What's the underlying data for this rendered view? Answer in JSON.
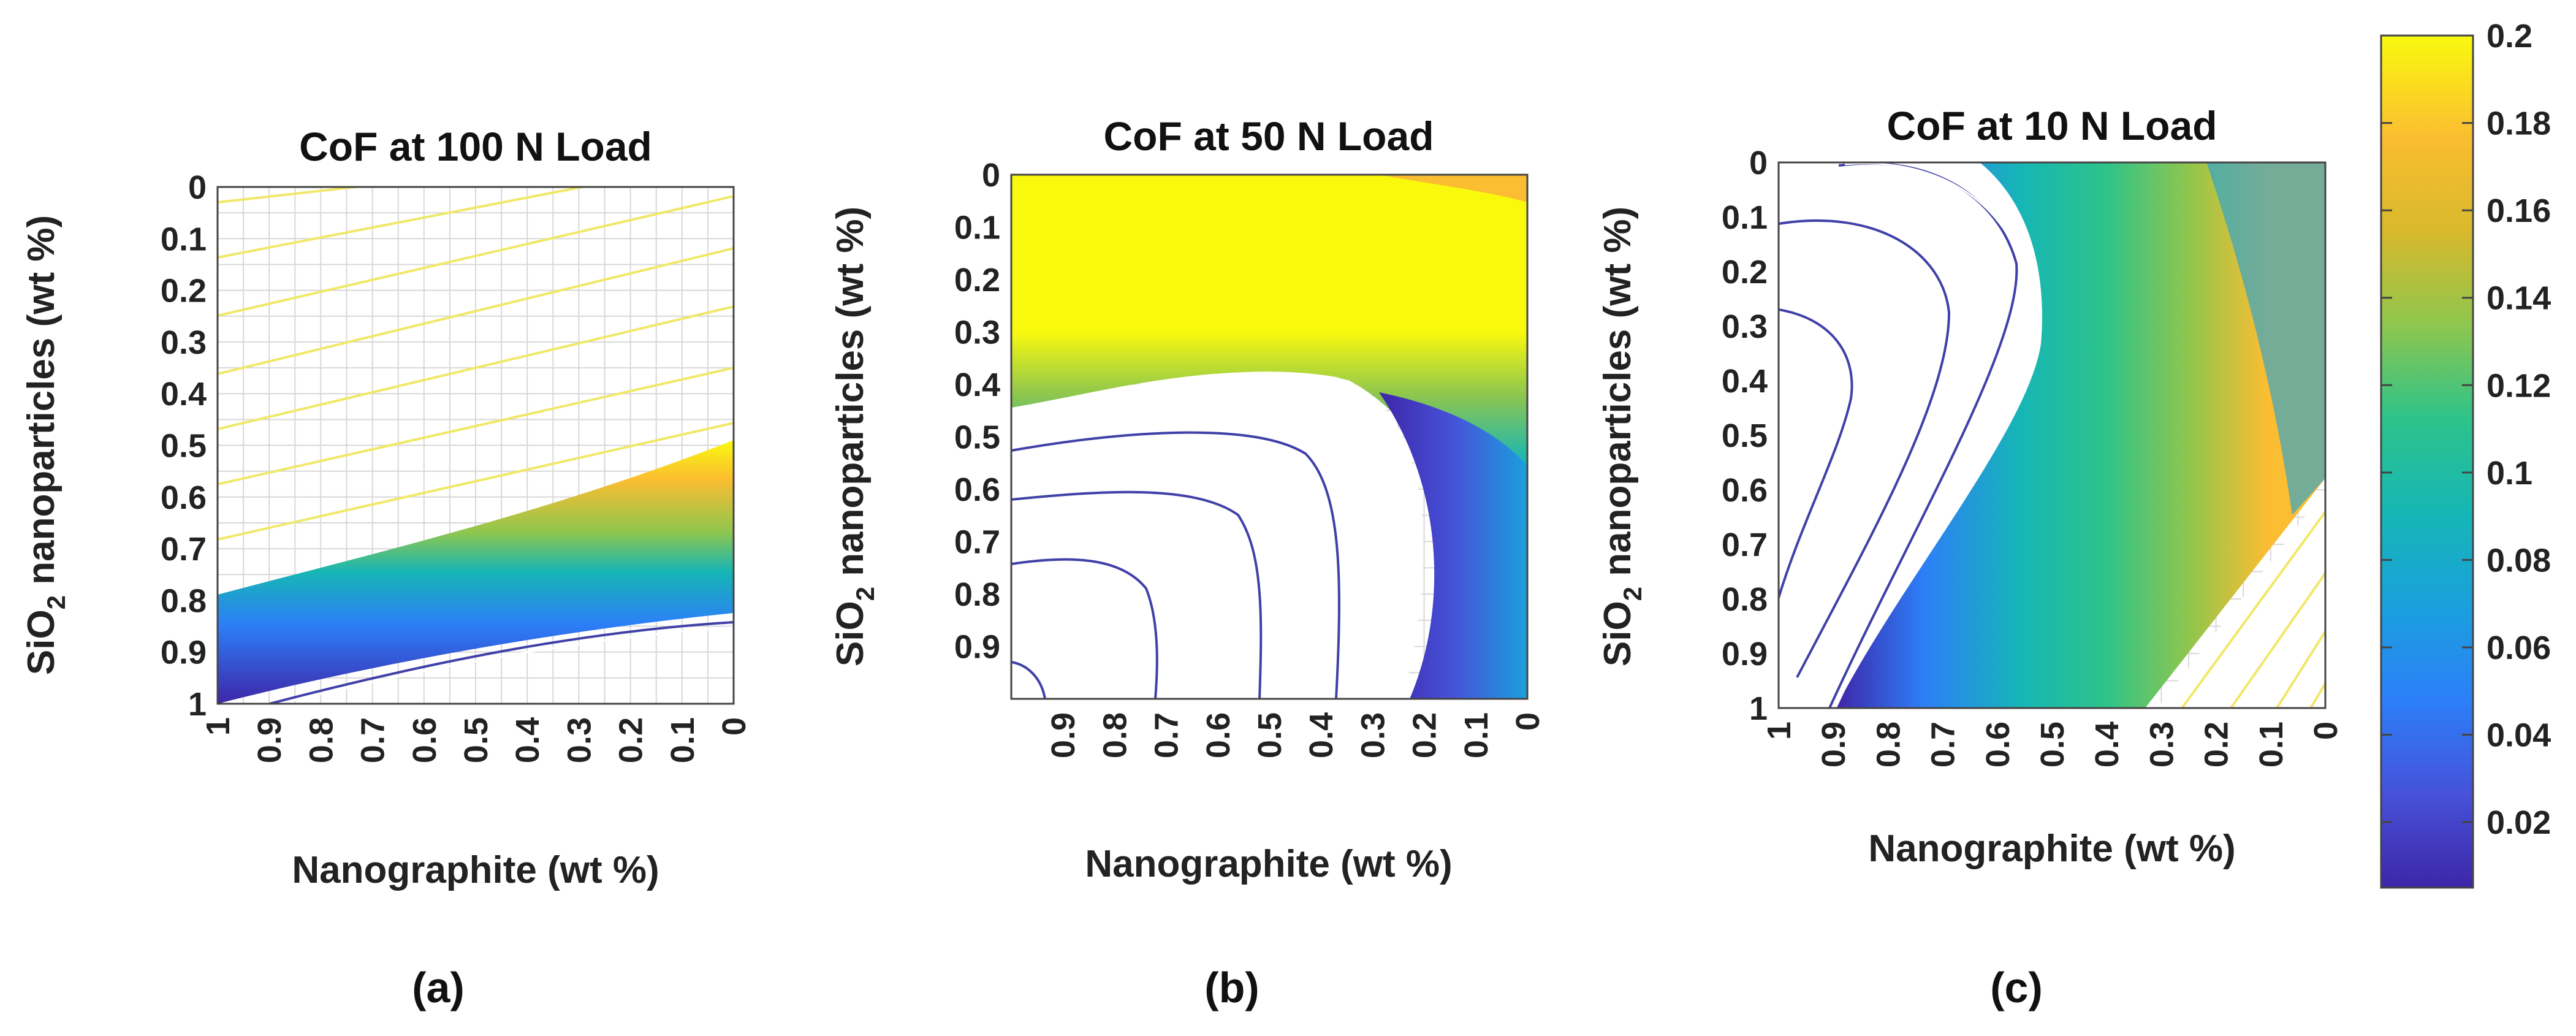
{
  "chart_data": [
    {
      "type": "heatmap",
      "title": "CoF at 100 N Load",
      "panel_label": "(a)",
      "xlabel": "Nanographite (wt %)",
      "ylabel_main": "SiO",
      "ylabel_sub": "2",
      "ylabel_rest": " nanoparticles (wt %)",
      "x_range": [
        1,
        0
      ],
      "y_range": [
        0,
        1
      ],
      "x_ticks": [
        "1",
        "0.9",
        "0.8",
        "0.7",
        "0.6",
        "0.5",
        "0.4",
        "0.3",
        "0.2",
        "0.1",
        "0"
      ],
      "y_ticks": [
        "0",
        "0.1",
        "0.2",
        "0.3",
        "0.4",
        "0.5",
        "0.6",
        "0.7",
        "0.8",
        "0.9",
        "1"
      ],
      "colored_band": {
        "upper_edge_at_x1": 0.79,
        "upper_edge_at_x0": 0.49,
        "lower_edge_at_x1": 1.0,
        "lower_edge_at_x0": 0.82
      },
      "contour_color": "#f0e868",
      "low_contour_color": "#4040a8"
    },
    {
      "type": "heatmap",
      "title": "CoF at 50 N Load",
      "panel_label": "(b)",
      "xlabel": "Nanographite (wt %)",
      "ylabel_main": "SiO",
      "ylabel_sub": "2",
      "ylabel_rest": " nanoparticles (wt %)",
      "x_range": [
        1,
        0
      ],
      "y_range": [
        0,
        1
      ],
      "x_ticks": [
        "0.9",
        "0.8",
        "0.7",
        "0.6",
        "0.5",
        "0.4",
        "0.3",
        "0.2",
        "0.1",
        "0"
      ],
      "y_ticks": [
        "0",
        "0.1",
        "0.2",
        "0.3",
        "0.4",
        "0.5",
        "0.6",
        "0.7",
        "0.8",
        "0.9"
      ],
      "cof_saturated_top": 0.2,
      "contour_color": "#4040a8"
    },
    {
      "type": "heatmap",
      "title": "CoF at 10 N Load",
      "panel_label": "(c)",
      "xlabel": "Nanographite (wt %)",
      "ylabel_main": "SiO",
      "ylabel_sub": "2",
      "ylabel_rest": " nanoparticles (wt %)",
      "x_range": [
        1,
        0
      ],
      "y_range": [
        0,
        1
      ],
      "x_ticks": [
        "1",
        "0.9",
        "0.8",
        "0.7",
        "0.6",
        "0.5",
        "0.4",
        "0.3",
        "0.2",
        "0.1",
        "0"
      ],
      "y_ticks": [
        "0",
        "0.1",
        "0.2",
        "0.3",
        "0.4",
        "0.5",
        "0.6",
        "0.7",
        "0.8",
        "0.9",
        "1"
      ],
      "contour_color": "#4040a8",
      "high_contour_color": "#f0e868"
    }
  ],
  "colorbar": {
    "ticks": [
      "0.2",
      "0.18",
      "0.16",
      "0.14",
      "0.12",
      "0.1",
      "0.08",
      "0.06",
      "0.04",
      "0.02"
    ],
    "tick_values": [
      0.2,
      0.18,
      0.16,
      0.14,
      0.12,
      0.1,
      0.08,
      0.06,
      0.04,
      0.02
    ],
    "range": [
      0.005,
      0.2
    ],
    "colormap": "parula",
    "stops": [
      "#3e26a8",
      "#4652d9",
      "#2c7ff8",
      "#1aa0dd",
      "#16b6b5",
      "#2dc38a",
      "#8ec64e",
      "#d8b92c",
      "#fbbd31",
      "#f9f90e"
    ]
  }
}
